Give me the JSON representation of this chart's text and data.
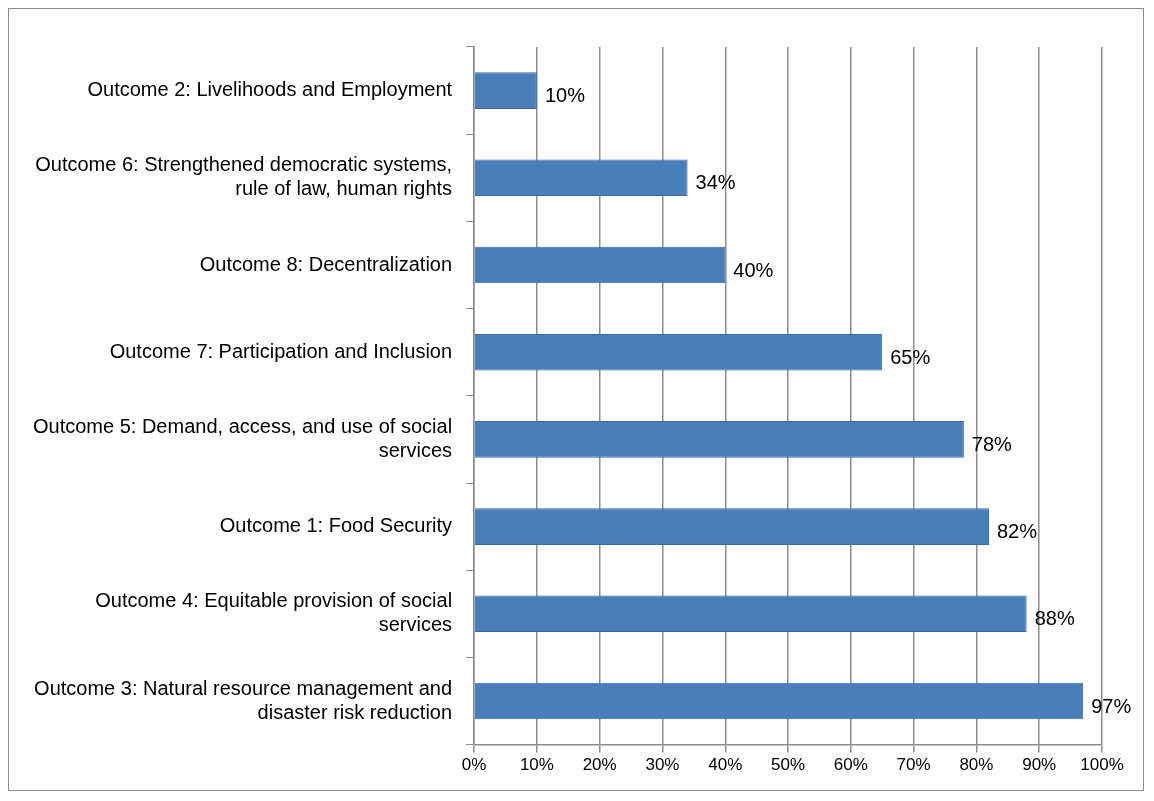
{
  "chart_data": {
    "type": "bar",
    "orientation": "horizontal",
    "categories": [
      "Outcome 2: Livelihoods and Employment",
      "Outcome 6: Strengthened democratic systems, rule of law, human rights",
      "Outcome 8: Decentralization",
      "Outcome 7: Participation and Inclusion",
      "Outcome 5: Demand, access, and use of social services",
      "Outcome 1: Food Security",
      "Outcome 4: Equitable provision of social services",
      "Outcome 3: Natural resource management and disaster risk reduction"
    ],
    "values": [
      10,
      34,
      40,
      65,
      78,
      82,
      88,
      97
    ],
    "value_labels": [
      "10%",
      "34%",
      "40%",
      "65%",
      "78%",
      "82%",
      "88%",
      "97%"
    ],
    "color": "#4a7ebb",
    "xlim": [
      0,
      100
    ],
    "xticks": [
      {
        "value": 0,
        "label": "0%"
      },
      {
        "value": 10,
        "label": "10%"
      },
      {
        "value": 20,
        "label": "20%"
      },
      {
        "value": 30,
        "label": "30%"
      },
      {
        "value": 40,
        "label": "40%"
      },
      {
        "value": 50,
        "label": "50%"
      },
      {
        "value": 60,
        "label": "60%"
      },
      {
        "value": 70,
        "label": "70%"
      },
      {
        "value": 80,
        "label": "80%"
      },
      {
        "value": 90,
        "label": "90%"
      },
      {
        "value": 100,
        "label": "100%"
      }
    ],
    "grid": "x",
    "legend": false
  }
}
